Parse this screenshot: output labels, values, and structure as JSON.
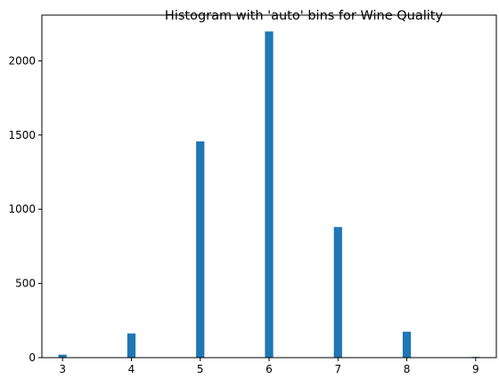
{
  "chart_data": {
    "type": "bar",
    "title": "Histogram with 'auto' bins for Wine Quality",
    "xlabel": "",
    "ylabel": "",
    "x": [
      3,
      4,
      5,
      6,
      7,
      8,
      9
    ],
    "values": [
      20,
      163,
      1457,
      2198,
      880,
      175,
      5
    ],
    "xlim": [
      2.7,
      9.3
    ],
    "ylim": [
      0,
      2308
    ],
    "x_ticks": [
      "3",
      "4",
      "5",
      "6",
      "7",
      "8",
      "9"
    ],
    "y_ticks": [
      "0",
      "500",
      "1000",
      "1500",
      "2000"
    ],
    "y_tick_values": [
      0,
      500,
      1000,
      1500,
      2000
    ],
    "bar_width": 0.12,
    "grid": false,
    "legend": "none",
    "bar_color": "#1f77b4"
  }
}
